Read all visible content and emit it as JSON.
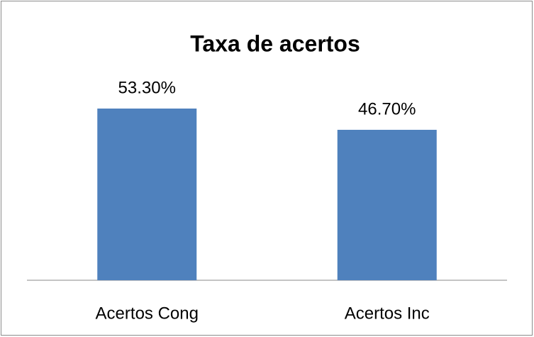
{
  "chart_data": {
    "type": "bar",
    "title": "Taxa de acertos",
    "categories": [
      "Acertos Cong",
      "Acertos Inc"
    ],
    "values": [
      53.3,
      46.7
    ],
    "value_labels": [
      "53.30%",
      "46.70%"
    ],
    "color": "#4f81bd"
  }
}
